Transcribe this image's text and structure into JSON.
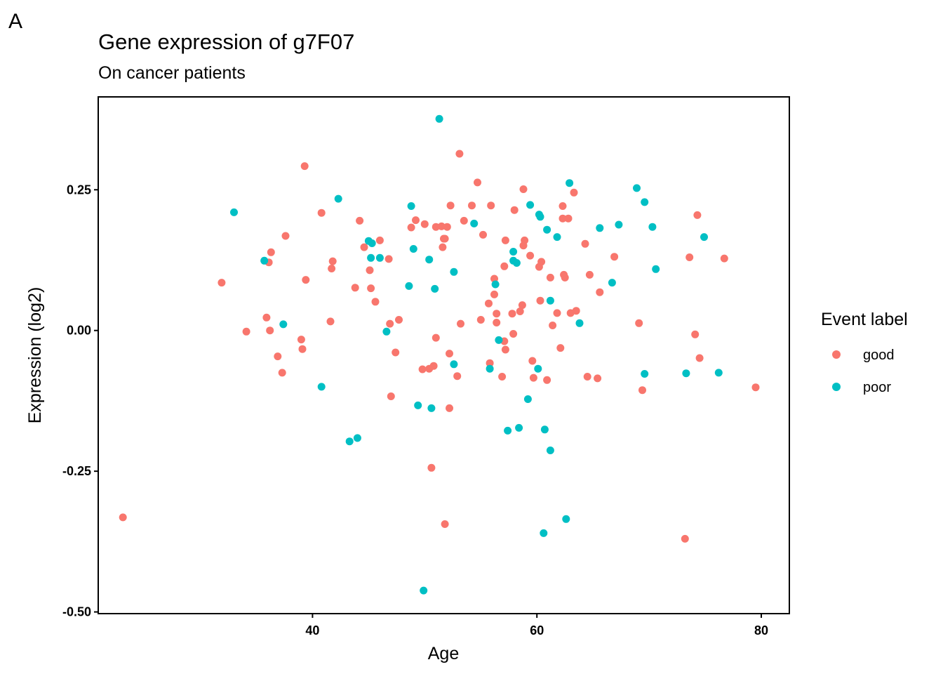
{
  "panel_tag": "A",
  "chart_data": {
    "type": "scatter",
    "title": "Gene expression of g7F07",
    "subtitle": "On cancer patients",
    "xlabel": "Age",
    "ylabel": "Expression (log2)",
    "xlim": [
      20.9,
      82.5
    ],
    "ylim": [
      -0.503,
      0.415
    ],
    "x_ticks": [
      40,
      60,
      80
    ],
    "x_tick_labels": [
      "40",
      "60",
      "80"
    ],
    "y_ticks": [
      -0.5,
      -0.25,
      0,
      0.25
    ],
    "y_tick_labels": [
      "-0.50",
      "-0.25",
      "0.00",
      "0.25"
    ],
    "grid": false,
    "legend": {
      "title": "Event label",
      "position": "right",
      "entries": [
        {
          "label": "good",
          "color": "#F8766D"
        },
        {
          "label": "poor",
          "color": "#00BFC4"
        }
      ]
    },
    "series": [
      {
        "name": "good",
        "color": "#F8766D",
        "points": [
          [
            23.1,
            -0.332
          ],
          [
            31.9,
            0.085
          ],
          [
            34.1,
            -0.002
          ],
          [
            35.9,
            0.023
          ],
          [
            36.1,
            0.121
          ],
          [
            36.2,
            0.0
          ],
          [
            36.3,
            0.139
          ],
          [
            36.9,
            -0.046
          ],
          [
            37.3,
            -0.075
          ],
          [
            37.6,
            0.168
          ],
          [
            39.0,
            -0.016
          ],
          [
            39.1,
            -0.033
          ],
          [
            39.3,
            0.292
          ],
          [
            39.4,
            0.09
          ],
          [
            40.8,
            0.209
          ],
          [
            41.6,
            0.016
          ],
          [
            41.7,
            0.11
          ],
          [
            41.8,
            0.123
          ],
          [
            43.8,
            0.076
          ],
          [
            44.2,
            0.195
          ],
          [
            44.6,
            0.148
          ],
          [
            45.1,
            0.107
          ],
          [
            45.2,
            0.075
          ],
          [
            45.6,
            0.051
          ],
          [
            46.0,
            0.16
          ],
          [
            46.8,
            0.127
          ],
          [
            46.9,
            0.012
          ],
          [
            47.0,
            -0.117
          ],
          [
            47.4,
            -0.039
          ],
          [
            47.7,
            0.019
          ],
          [
            48.8,
            0.183
          ],
          [
            49.2,
            0.196
          ],
          [
            49.8,
            -0.069
          ],
          [
            50.0,
            0.189
          ],
          [
            50.4,
            -0.068
          ],
          [
            50.6,
            -0.244
          ],
          [
            50.8,
            -0.063
          ],
          [
            51.0,
            0.184
          ],
          [
            51.0,
            -0.013
          ],
          [
            51.5,
            0.185
          ],
          [
            51.6,
            0.148
          ],
          [
            51.7,
            0.163
          ],
          [
            51.8,
            0.163
          ],
          [
            51.8,
            -0.344
          ],
          [
            52.0,
            0.184
          ],
          [
            52.2,
            -0.138
          ],
          [
            52.2,
            -0.041
          ],
          [
            52.3,
            0.222
          ],
          [
            52.9,
            -0.081
          ],
          [
            53.1,
            0.314
          ],
          [
            53.2,
            0.012
          ],
          [
            53.5,
            0.195
          ],
          [
            54.2,
            0.222
          ],
          [
            54.7,
            0.263
          ],
          [
            55.0,
            0.019
          ],
          [
            55.2,
            0.17
          ],
          [
            55.7,
            0.048
          ],
          [
            55.8,
            -0.058
          ],
          [
            55.9,
            0.222
          ],
          [
            56.2,
            0.092
          ],
          [
            56.2,
            0.064
          ],
          [
            56.4,
            0.03
          ],
          [
            56.4,
            0.014
          ],
          [
            56.9,
            -0.082
          ],
          [
            57.1,
            0.114
          ],
          [
            57.1,
            -0.019
          ],
          [
            57.2,
            0.16
          ],
          [
            57.2,
            -0.034
          ],
          [
            57.8,
            0.03
          ],
          [
            57.9,
            -0.006
          ],
          [
            58.0,
            0.214
          ],
          [
            58.5,
            0.034
          ],
          [
            58.7,
            0.045
          ],
          [
            58.8,
            0.151
          ],
          [
            58.8,
            0.251
          ],
          [
            58.9,
            0.16
          ],
          [
            59.4,
            0.133
          ],
          [
            59.6,
            -0.054
          ],
          [
            59.7,
            -0.084
          ],
          [
            60.2,
            0.113
          ],
          [
            60.3,
            0.053
          ],
          [
            60.4,
            0.122
          ],
          [
            60.9,
            -0.088
          ],
          [
            61.2,
            0.094
          ],
          [
            61.4,
            0.009
          ],
          [
            61.8,
            0.031
          ],
          [
            62.1,
            -0.031
          ],
          [
            62.3,
            0.199
          ],
          [
            62.3,
            0.221
          ],
          [
            62.4,
            0.099
          ],
          [
            62.5,
            0.094
          ],
          [
            62.8,
            0.199
          ],
          [
            63.0,
            0.031
          ],
          [
            63.3,
            0.245
          ],
          [
            63.5,
            0.035
          ],
          [
            64.3,
            0.154
          ],
          [
            64.5,
            -0.082
          ],
          [
            64.7,
            0.099
          ],
          [
            65.4,
            -0.085
          ],
          [
            65.6,
            0.068
          ],
          [
            66.9,
            0.131
          ],
          [
            69.1,
            0.013
          ],
          [
            69.4,
            -0.106
          ],
          [
            73.2,
            -0.37
          ],
          [
            73.6,
            0.13
          ],
          [
            74.1,
            -0.007
          ],
          [
            74.3,
            0.205
          ],
          [
            74.5,
            -0.049
          ],
          [
            76.7,
            0.128
          ],
          [
            79.5,
            -0.101
          ]
        ]
      },
      {
        "name": "poor",
        "color": "#00BFC4",
        "points": [
          [
            33.0,
            0.21
          ],
          [
            35.7,
            0.124
          ],
          [
            37.4,
            0.011
          ],
          [
            40.8,
            -0.1
          ],
          [
            42.3,
            0.234
          ],
          [
            43.3,
            -0.197
          ],
          [
            44.0,
            -0.191
          ],
          [
            45.0,
            0.159
          ],
          [
            45.2,
            0.129
          ],
          [
            45.3,
            0.155
          ],
          [
            46.0,
            0.129
          ],
          [
            46.6,
            -0.002
          ],
          [
            48.6,
            0.079
          ],
          [
            48.8,
            0.221
          ],
          [
            49.0,
            0.145
          ],
          [
            49.4,
            -0.133
          ],
          [
            49.9,
            -0.462
          ],
          [
            50.4,
            0.126
          ],
          [
            50.6,
            -0.138
          ],
          [
            50.9,
            0.074
          ],
          [
            51.3,
            0.376
          ],
          [
            52.6,
            0.104
          ],
          [
            52.6,
            -0.06
          ],
          [
            54.4,
            0.19
          ],
          [
            55.8,
            -0.068
          ],
          [
            56.3,
            0.082
          ],
          [
            56.6,
            -0.017
          ],
          [
            57.4,
            -0.178
          ],
          [
            57.9,
            0.124
          ],
          [
            57.9,
            0.14
          ],
          [
            58.2,
            0.12
          ],
          [
            58.4,
            -0.173
          ],
          [
            59.2,
            -0.122
          ],
          [
            59.4,
            0.223
          ],
          [
            60.1,
            -0.068
          ],
          [
            60.2,
            0.206
          ],
          [
            60.3,
            0.202
          ],
          [
            60.6,
            -0.36
          ],
          [
            60.7,
            -0.176
          ],
          [
            60.9,
            0.179
          ],
          [
            61.2,
            0.053
          ],
          [
            61.2,
            -0.213
          ],
          [
            61.8,
            0.166
          ],
          [
            62.6,
            -0.335
          ],
          [
            62.9,
            0.262
          ],
          [
            63.8,
            0.013
          ],
          [
            65.6,
            0.182
          ],
          [
            66.7,
            0.085
          ],
          [
            67.3,
            0.188
          ],
          [
            68.9,
            0.253
          ],
          [
            69.6,
            -0.077
          ],
          [
            69.6,
            0.228
          ],
          [
            70.3,
            0.184
          ],
          [
            70.6,
            0.109
          ],
          [
            73.3,
            -0.076
          ],
          [
            74.9,
            0.166
          ],
          [
            76.2,
            -0.075
          ]
        ]
      }
    ]
  }
}
